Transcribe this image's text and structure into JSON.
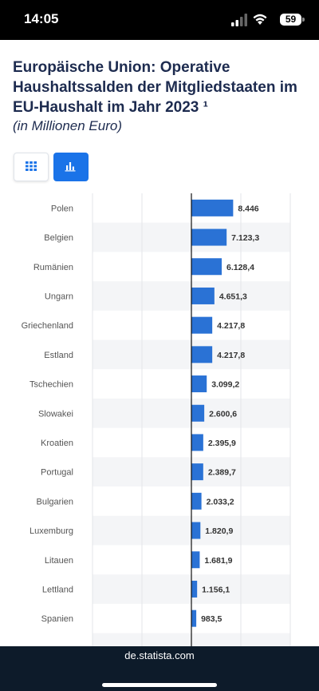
{
  "status_bar": {
    "time": "14:05",
    "battery": "59",
    "icons": [
      "signal-icon",
      "wifi-icon",
      "battery-icon"
    ]
  },
  "view_toggle": {
    "options": [
      "table-view",
      "chart-view"
    ],
    "selected": "chart-view",
    "icons": [
      "grid-icon",
      "bar-chart-icon"
    ],
    "accent_color": "#1a73e8"
  },
  "footer": {
    "source": "de.statista.com"
  },
  "chart_data": {
    "type": "bar",
    "orientation": "horizontal",
    "title": "Europäische Union: Operative Haushaltssalden der Mitgliedstaaten im EU-Haushalt im Jahr 2023 ¹",
    "subtitle": "(in Millionen Euro)",
    "categories": [
      "Polen",
      "Belgien",
      "Rumänien",
      "Ungarn",
      "Griechenland",
      "Estland",
      "Tschechien",
      "Slowakei",
      "Kroatien",
      "Portugal",
      "Bulgarien",
      "Luxemburg",
      "Litauen",
      "Lettland",
      "Spanien"
    ],
    "values": [
      8446,
      7123.3,
      6128.4,
      4651.3,
      4217.8,
      4217.8,
      3099.2,
      2600.6,
      2395.9,
      2389.7,
      2033.2,
      1820.9,
      1681.9,
      1156.1,
      983.5
    ],
    "value_labels": [
      "8.446",
      "7.123,3",
      "6.128,4",
      "4.651,3",
      "4.217,8",
      "4.217,8",
      "3.099,2",
      "2.600,6",
      "2.395,9",
      "2.389,7",
      "2.033,2",
      "1.820,9",
      "1.681,9",
      "1.156,1",
      "983,5"
    ],
    "xlim": [
      -20000,
      20000
    ],
    "grid": true,
    "bar_color": "#2a72d5"
  }
}
